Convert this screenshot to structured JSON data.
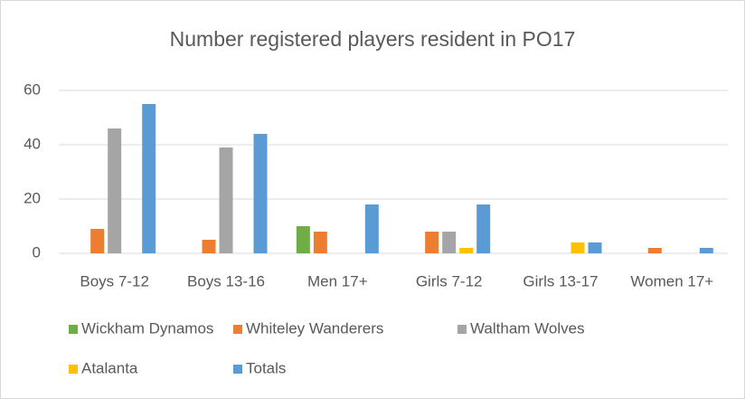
{
  "chart_data": {
    "type": "bar",
    "title": "Number registered players resident in PO17",
    "categories": [
      "Boys 7-12",
      "Boys 13-16",
      "Men 17+",
      "Girls 7-12",
      "Girls 13-17",
      "Women 17+"
    ],
    "series": [
      {
        "name": "Wickham Dynamos",
        "color": "#70ad47",
        "values": [
          0,
          0,
          10,
          0,
          0,
          0
        ]
      },
      {
        "name": "Whiteley Wanderers",
        "color": "#ed7d31",
        "values": [
          9,
          5,
          8,
          8,
          0,
          2
        ]
      },
      {
        "name": "Waltham Wolves",
        "color": "#a5a5a5",
        "values": [
          46,
          39,
          0,
          8,
          0,
          0
        ]
      },
      {
        "name": "Atalanta",
        "color": "#ffc000",
        "values": [
          0,
          0,
          0,
          2,
          4,
          0
        ]
      },
      {
        "name": "Totals",
        "color": "#5b9bd5",
        "values": [
          55,
          44,
          18,
          18,
          4,
          2
        ]
      }
    ],
    "ylim": [
      0,
      60
    ],
    "yticks": [
      0,
      20,
      40,
      60
    ],
    "grid": true
  }
}
